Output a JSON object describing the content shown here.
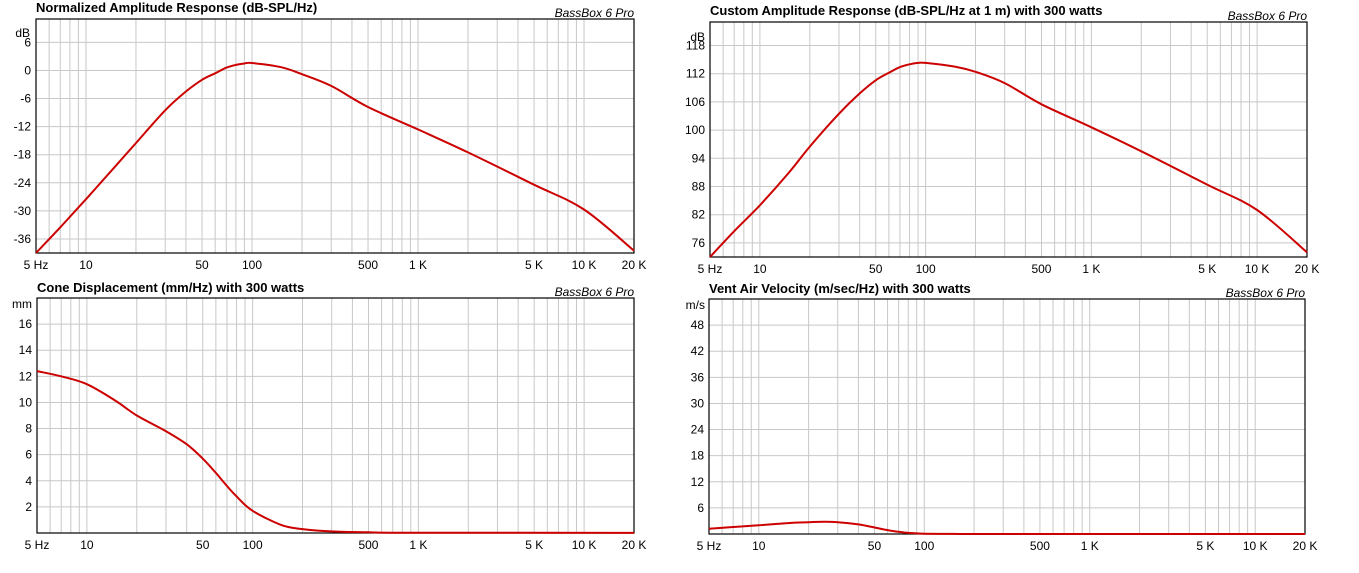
{
  "chart_data": [
    {
      "type": "line",
      "title": "Normalized Amplitude Response (dB-SPL/Hz)",
      "watermark": "BassBox 6 Pro",
      "ylabel": "dB",
      "x_scale": "log",
      "xlim": [
        5,
        20000
      ],
      "ylim": [
        -39,
        11
      ],
      "x_ticks": [
        5,
        10,
        50,
        100,
        500,
        1000,
        5000,
        10000,
        20000
      ],
      "x_tick_labels": [
        "5 Hz",
        "10",
        "50",
        "100",
        "500",
        "1 K",
        "5 K",
        "10 K",
        "20 K"
      ],
      "y_ticks": [
        6,
        0,
        -6,
        -12,
        -18,
        -24,
        -30,
        -36
      ],
      "y_tick_labels": [
        "6",
        "0",
        "-6",
        "-12",
        "-18",
        "-24",
        "-30",
        "-36"
      ],
      "grid": true,
      "line_color": "#cc0000",
      "series": [
        {
          "x": [
            5,
            7,
            10,
            15,
            20,
            30,
            40,
            50,
            60,
            70,
            80,
            90,
            100,
            150,
            200,
            300,
            500,
            1000,
            2000,
            5000,
            10000,
            20000
          ],
          "values": [
            -39,
            -33.5,
            -27.5,
            -20.5,
            -15.5,
            -8.5,
            -4.5,
            -2,
            -0.6,
            0.6,
            1.2,
            1.5,
            1.6,
            0.7,
            -0.8,
            -3.3,
            -7.8,
            -12.6,
            -17.5,
            -24.4,
            -29.7,
            -38.5
          ]
        }
      ]
    },
    {
      "type": "line",
      "title": "Custom Amplitude Response (dB-SPL/Hz at 1 m) with 300 watts",
      "watermark": "BassBox 6 Pro",
      "ylabel": "dB",
      "x_scale": "log",
      "xlim": [
        5,
        20000
      ],
      "ylim": [
        73,
        123
      ],
      "x_ticks": [
        5,
        10,
        50,
        100,
        500,
        1000,
        5000,
        10000,
        20000
      ],
      "x_tick_labels": [
        "5 Hz",
        "10",
        "50",
        "100",
        "500",
        "1 K",
        "5 K",
        "10 K",
        "20 K"
      ],
      "y_ticks": [
        118,
        112,
        106,
        100,
        94,
        88,
        82,
        76
      ],
      "y_tick_labels": [
        "118",
        "112",
        "106",
        "100",
        "94",
        "88",
        "82",
        "76"
      ],
      "grid": true,
      "line_color": "#cc0000",
      "series": [
        {
          "x": [
            5,
            7,
            10,
            15,
            20,
            30,
            40,
            50,
            60,
            70,
            80,
            90,
            100,
            150,
            200,
            300,
            500,
            1000,
            2000,
            5000,
            10000,
            20000
          ],
          "values": [
            73,
            78.5,
            84,
            91,
            96.5,
            103.5,
            107.8,
            110.6,
            112.2,
            113.4,
            114,
            114.3,
            114.3,
            113.5,
            112.4,
            110,
            105.5,
            100.6,
            95.5,
            88.4,
            83,
            74
          ]
        }
      ]
    },
    {
      "type": "line",
      "title": "Cone Displacement (mm/Hz) with 300 watts",
      "watermark": "BassBox 6 Pro",
      "ylabel": "mm",
      "x_scale": "log",
      "xlim": [
        5,
        20000
      ],
      "ylim": [
        0,
        18
      ],
      "x_ticks": [
        5,
        10,
        50,
        100,
        500,
        1000,
        5000,
        10000,
        20000
      ],
      "x_tick_labels": [
        "5 Hz",
        "10",
        "50",
        "100",
        "500",
        "1 K",
        "5 K",
        "10 K",
        "20 K"
      ],
      "y_ticks": [
        16,
        14,
        12,
        10,
        8,
        6,
        4,
        2
      ],
      "y_tick_labels": [
        "16",
        "14",
        "12",
        "10",
        "8",
        "6",
        "4",
        "2"
      ],
      "grid": true,
      "line_color": "#cc0000",
      "series": [
        {
          "x": [
            5,
            7,
            10,
            15,
            20,
            30,
            40,
            50,
            60,
            70,
            80,
            100,
            150,
            200,
            300,
            500,
            1000,
            20000
          ],
          "values": [
            12.4,
            12,
            11.4,
            10.1,
            9,
            7.8,
            6.8,
            5.7,
            4.6,
            3.6,
            2.8,
            1.7,
            0.6,
            0.3,
            0.12,
            0.05,
            0.02,
            0.01
          ]
        }
      ]
    },
    {
      "type": "line",
      "title": "Vent Air Velocity (m/sec/Hz) with 300 watts",
      "watermark": "BassBox 6 Pro",
      "ylabel": "m/s",
      "x_scale": "log",
      "xlim": [
        5,
        20000
      ],
      "ylim": [
        0,
        54
      ],
      "x_ticks": [
        5,
        10,
        50,
        100,
        500,
        1000,
        5000,
        10000,
        20000
      ],
      "x_tick_labels": [
        "5 Hz",
        "10",
        "50",
        "100",
        "500",
        "1 K",
        "5 K",
        "10 K",
        "20 K"
      ],
      "y_ticks": [
        48,
        42,
        36,
        30,
        24,
        18,
        12,
        6
      ],
      "y_tick_labels": [
        "48",
        "42",
        "36",
        "30",
        "24",
        "18",
        "12",
        "6"
      ],
      "grid": true,
      "line_color": "#cc0000",
      "series": [
        {
          "x": [
            5,
            7,
            10,
            15,
            20,
            25,
            30,
            40,
            50,
            60,
            70,
            80,
            100,
            150,
            200,
            500,
            20000
          ],
          "values": [
            1.2,
            1.6,
            2,
            2.5,
            2.7,
            2.8,
            2.7,
            2.2,
            1.5,
            0.9,
            0.5,
            0.25,
            0.08,
            0.02,
            0.01,
            0,
            0
          ]
        }
      ]
    }
  ]
}
